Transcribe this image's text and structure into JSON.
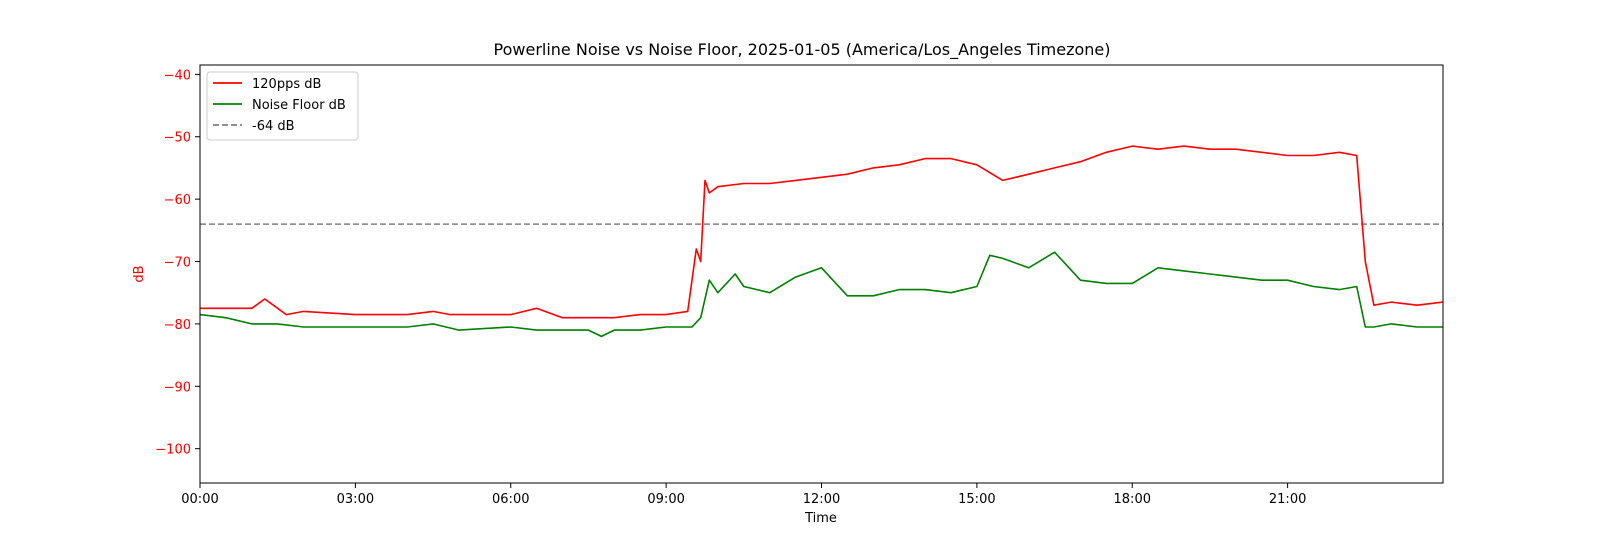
{
  "chart_data": {
    "type": "line",
    "title": "Powerline Noise vs Noise Floor, 2025-01-05 (America/Los_Angeles Timezone)",
    "xlabel": "Time",
    "ylabel": "dB",
    "xlim": [
      "00:00",
      "24:00"
    ],
    "ylim": [
      -105.5,
      -38.5
    ],
    "x_ticks": [
      "00:00",
      "03:00",
      "06:00",
      "09:00",
      "12:00",
      "15:00",
      "18:00",
      "21:00"
    ],
    "y_ticks": [
      -40,
      -50,
      -60,
      -70,
      -80,
      -90,
      -100
    ],
    "grid": false,
    "legend": "top-left",
    "reference_line": {
      "label": "-64 dB",
      "value": -64,
      "color": "#808080",
      "style": "dashed"
    },
    "series": [
      {
        "name": "120pps dB",
        "color": "#ff0000",
        "x": [
          "00:00",
          "00:30",
          "01:00",
          "01:15",
          "01:25",
          "01:40",
          "02:00",
          "03:00",
          "04:00",
          "04:30",
          "04:50",
          "05:00",
          "06:00",
          "06:30",
          "07:00",
          "07:30",
          "07:40",
          "08:00",
          "08:30",
          "09:00",
          "09:25",
          "09:35",
          "09:40",
          "09:45",
          "09:50",
          "10:00",
          "10:30",
          "11:00",
          "11:30",
          "12:00",
          "12:30",
          "13:00",
          "13:30",
          "14:00",
          "14:30",
          "15:00",
          "15:30",
          "16:00",
          "16:30",
          "17:00",
          "17:30",
          "18:00",
          "18:30",
          "19:00",
          "19:30",
          "20:00",
          "20:30",
          "21:00",
          "21:30",
          "22:00",
          "22:20",
          "22:30",
          "22:40",
          "23:00",
          "23:30",
          "24:00"
        ],
        "y": [
          -77.5,
          -77.5,
          -77.5,
          -76,
          -77,
          -78.5,
          -78,
          -78.5,
          -78.5,
          -78,
          -78.5,
          -78.5,
          -78.5,
          -77.5,
          -79,
          -79,
          -79,
          -79,
          -78.5,
          -78.5,
          -78,
          -68,
          -70,
          -57,
          -59,
          -58,
          -57.5,
          -57.5,
          -57,
          -56.5,
          -56,
          -55,
          -54.5,
          -53.5,
          -53.5,
          -54.5,
          -57,
          -56,
          -55,
          -54,
          -52.5,
          -51.5,
          -52,
          -51.5,
          -52,
          -52,
          -52.5,
          -53,
          -53,
          -52.5,
          -53,
          -70,
          -77,
          -76.5,
          -77,
          -76.5
        ]
      },
      {
        "name": "Noise Floor dB",
        "color": "#008000",
        "x": [
          "00:00",
          "00:30",
          "01:00",
          "01:30",
          "02:00",
          "03:00",
          "04:00",
          "04:30",
          "04:45",
          "05:00",
          "06:00",
          "06:30",
          "07:00",
          "07:30",
          "07:45",
          "08:00",
          "08:30",
          "09:00",
          "09:30",
          "09:40",
          "09:50",
          "10:00",
          "10:20",
          "10:30",
          "11:00",
          "11:30",
          "12:00",
          "12:30",
          "13:00",
          "13:30",
          "14:00",
          "14:30",
          "15:00",
          "15:15",
          "15:30",
          "16:00",
          "16:30",
          "17:00",
          "17:30",
          "18:00",
          "18:30",
          "19:00",
          "19:30",
          "20:00",
          "20:30",
          "21:00",
          "21:30",
          "22:00",
          "22:20",
          "22:30",
          "22:40",
          "23:00",
          "23:30",
          "24:00"
        ],
        "y": [
          -78.5,
          -79,
          -80,
          -80,
          -80.5,
          -80.5,
          -80.5,
          -80,
          -80.5,
          -81,
          -80.5,
          -81,
          -81,
          -81,
          -82,
          -81,
          -81,
          -80.5,
          -80.5,
          -79,
          -73,
          -75,
          -72,
          -74,
          -75,
          -72.5,
          -71,
          -75.5,
          -75.5,
          -74.5,
          -74.5,
          -75,
          -74,
          -69,
          -69.5,
          -71,
          -68.5,
          -73,
          -73.5,
          -73.5,
          -71,
          -71.5,
          -72,
          -72.5,
          -73,
          -73,
          -74,
          -74.5,
          -74,
          -80.5,
          -80.5,
          -80,
          -80.5,
          -80.5
        ]
      }
    ]
  }
}
